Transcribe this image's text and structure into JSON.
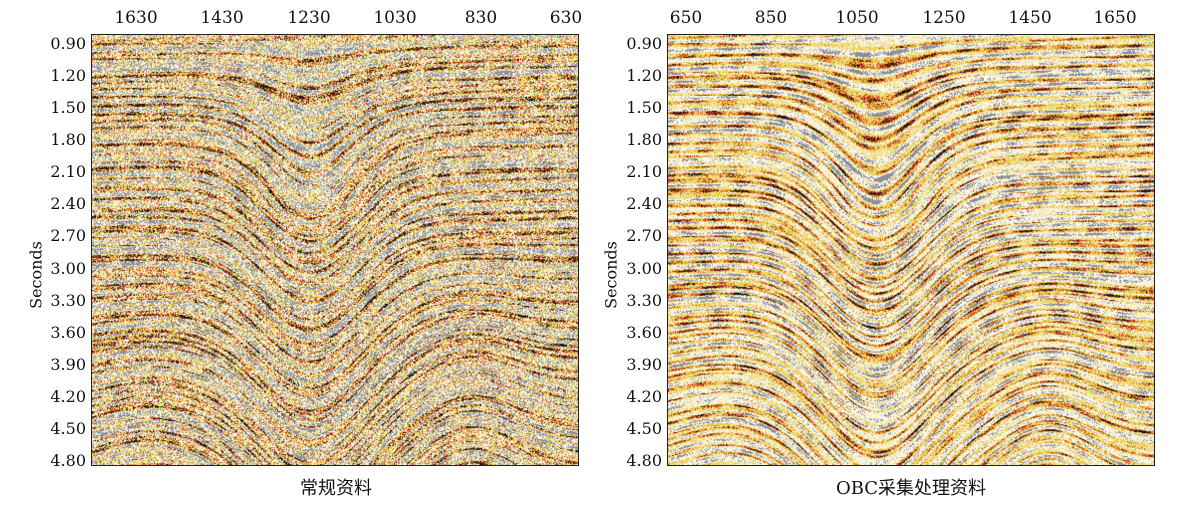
{
  "panels": [
    {
      "caption": "常规资料",
      "x_ticks": [
        "1630",
        "1430",
        "1230",
        "1030",
        "830",
        "630"
      ],
      "y_label": "Seconds",
      "y_ticks": [
        "0.90",
        "1.20",
        "1.50",
        "1.80",
        "2.10",
        "2.40",
        "2.70",
        "3.00",
        "3.30",
        "3.60",
        "3.90",
        "4.20",
        "4.50",
        "4.80"
      ]
    },
    {
      "caption": "OBC采集处理资料",
      "x_ticks": [
        "650",
        "850",
        "1050",
        "1250",
        "1450",
        "1650"
      ],
      "y_label": "Seconds",
      "y_ticks": [
        "0.90",
        "1.20",
        "1.50",
        "1.80",
        "2.10",
        "2.40",
        "2.70",
        "3.00",
        "3.30",
        "3.60",
        "3.90",
        "4.20",
        "4.50",
        "4.80"
      ]
    }
  ],
  "colors": {
    "background": "#f4e8b8",
    "yellow": "#e8c83c",
    "red": "#c8402a",
    "black": "#1a1a1a",
    "grey": "#8a8f98"
  }
}
